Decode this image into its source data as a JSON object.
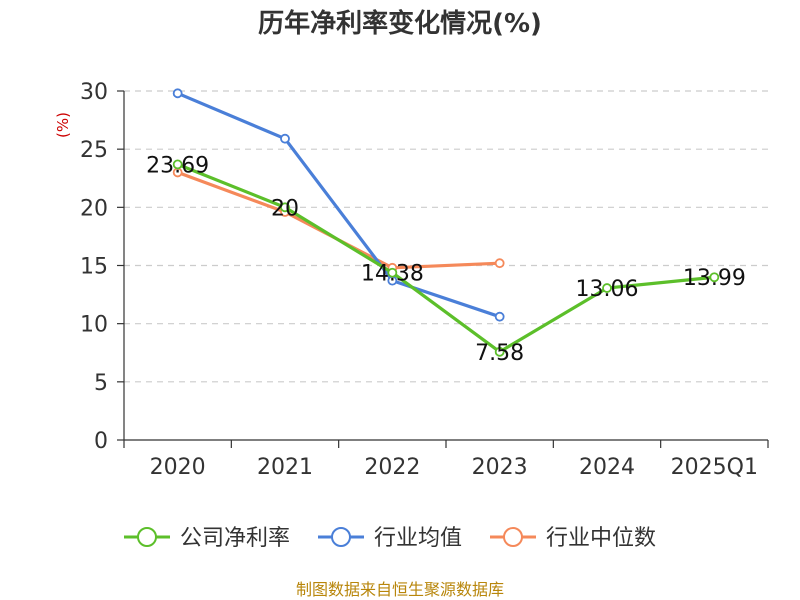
{
  "chart_data": {
    "type": "line",
    "title": "历年净利率变化情况(%)",
    "ylabel": "(%)",
    "xlabel": "",
    "categories": [
      "2020",
      "2021",
      "2022",
      "2023",
      "2024",
      "2025Q1"
    ],
    "ylim": [
      0,
      30
    ],
    "yticks": [
      0,
      5,
      10,
      15,
      20,
      25,
      30
    ],
    "grid": true,
    "legend_position": "bottom",
    "series": [
      {
        "name": "公司净利率",
        "color": "#5cbf2a",
        "labeled": true,
        "values": [
          23.69,
          20,
          14.38,
          7.58,
          13.06,
          13.99
        ],
        "labels": [
          "23.69",
          "20",
          "14.38",
          "7.58",
          "13.06",
          "13.99"
        ]
      },
      {
        "name": "行业均值",
        "color": "#4a7fd8",
        "labeled": false,
        "values": [
          29.8,
          25.9,
          13.7,
          10.6,
          null,
          null
        ]
      },
      {
        "name": "行业中位数",
        "color": "#f5895a",
        "labeled": false,
        "values": [
          23.0,
          19.6,
          14.8,
          15.2,
          null,
          null
        ]
      }
    ]
  },
  "source_text": "制图数据来自恒生聚源数据库"
}
